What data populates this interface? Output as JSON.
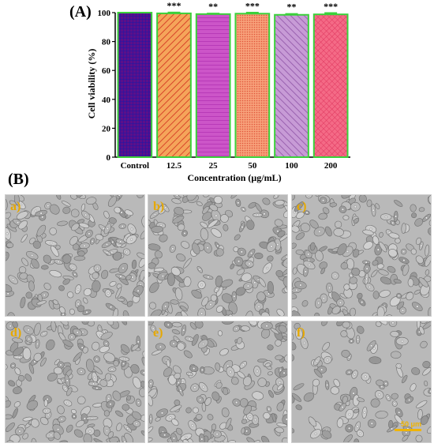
{
  "panel_a": {
    "label": "(A)"
  },
  "panel_b": {
    "label": "(B)"
  },
  "chart_data": {
    "type": "bar",
    "categories": [
      "Control",
      "12.5",
      "25",
      "50",
      "100",
      "200"
    ],
    "values": [
      100,
      99.5,
      99,
      99.3,
      98.5,
      98.8
    ],
    "errors": [
      0,
      0.6,
      0.4,
      0.7,
      0.6,
      0.9
    ],
    "significance": [
      "",
      "***",
      "**",
      "***",
      "**",
      "***"
    ],
    "xlabel": "Concentration (μg/mL)",
    "ylabel": "Cell viability (%)",
    "ylim": [
      0,
      100
    ],
    "yticks": [
      0,
      20,
      40,
      60,
      80,
      100
    ],
    "bar_colors": [
      "#6b1a8f",
      "#f07a3a",
      "#c44fc0",
      "#f2896a",
      "#b07cc6",
      "#ef5f7c"
    ],
    "outline_color": "#3bd13b"
  },
  "micrographs": [
    {
      "label": "a)"
    },
    {
      "label": "b)"
    },
    {
      "label": "c)"
    },
    {
      "label": "d)"
    },
    {
      "label": "e)"
    },
    {
      "label": "f)",
      "scale": "50 μm"
    }
  ]
}
